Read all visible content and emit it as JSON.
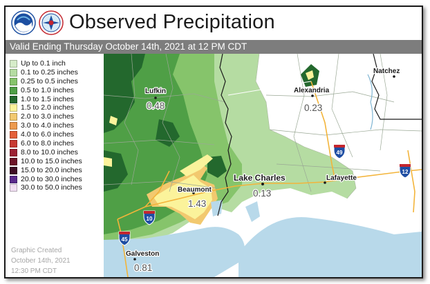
{
  "header": {
    "title": "Observed Precipitation",
    "subtitle": "Valid Ending Thursday October 14th, 2021 at 12 PM CDT",
    "logos": [
      "noaa-logo",
      "nws-logo"
    ]
  },
  "legend": {
    "items": [
      {
        "label": "Up to 0.1 inch",
        "color": "#d6ecc9"
      },
      {
        "label": "0.1 to 0.25 inches",
        "color": "#b5dca2"
      },
      {
        "label": "0.25 to 0.5 inches",
        "color": "#86c46b"
      },
      {
        "label": "0.5 to 1.0 inches",
        "color": "#4f9f46"
      },
      {
        "label": "1.0 to 1.5 inches",
        "color": "#23682d"
      },
      {
        "label": "1.5 to 2.0 inches",
        "color": "#fbf39b"
      },
      {
        "label": "2.0 to 3.0 inches",
        "color": "#f2c96f"
      },
      {
        "label": "3.0 to 4.0 inches",
        "color": "#ed9a4e"
      },
      {
        "label": "4.0 to 6.0 inches",
        "color": "#e4603a"
      },
      {
        "label": "6.0 to 8.0 inches",
        "color": "#c83a32"
      },
      {
        "label": "8.0 to 10.0 inches",
        "color": "#9c2233"
      },
      {
        "label": "10.0 to 15.0 inches",
        "color": "#6d1427"
      },
      {
        "label": "15.0 to 20.0 inches",
        "color": "#3e0d24"
      },
      {
        "label": "20.0 to 30.0 inches",
        "color": "#5a2a8c"
      },
      {
        "label": "30.0 to 50.0 inches",
        "color": "#f1dff2"
      }
    ]
  },
  "created": {
    "line1": "Graphic Created",
    "line2": "October 14th, 2021",
    "line3": "12:30 PM CDT"
  },
  "map": {
    "cities": [
      {
        "name": "Lufkin",
        "value": "0.48"
      },
      {
        "name": "Alexandria",
        "value": "0.23"
      },
      {
        "name": "Natchez"
      },
      {
        "name": "Lake Charles",
        "value": "0.13"
      },
      {
        "name": "Lafayette"
      },
      {
        "name": "Beaumont",
        "value": "1.43"
      },
      {
        "name": "Galveston",
        "value": "0.81"
      }
    ],
    "shields": [
      {
        "number": "49"
      },
      {
        "number": "12"
      },
      {
        "number": "10"
      },
      {
        "number": "45"
      }
    ],
    "colors": {
      "water": "#b8d9ea",
      "state_border": "#1a1a1a",
      "county_line": "#9aa895",
      "interstate": "#f3b43a"
    }
  }
}
